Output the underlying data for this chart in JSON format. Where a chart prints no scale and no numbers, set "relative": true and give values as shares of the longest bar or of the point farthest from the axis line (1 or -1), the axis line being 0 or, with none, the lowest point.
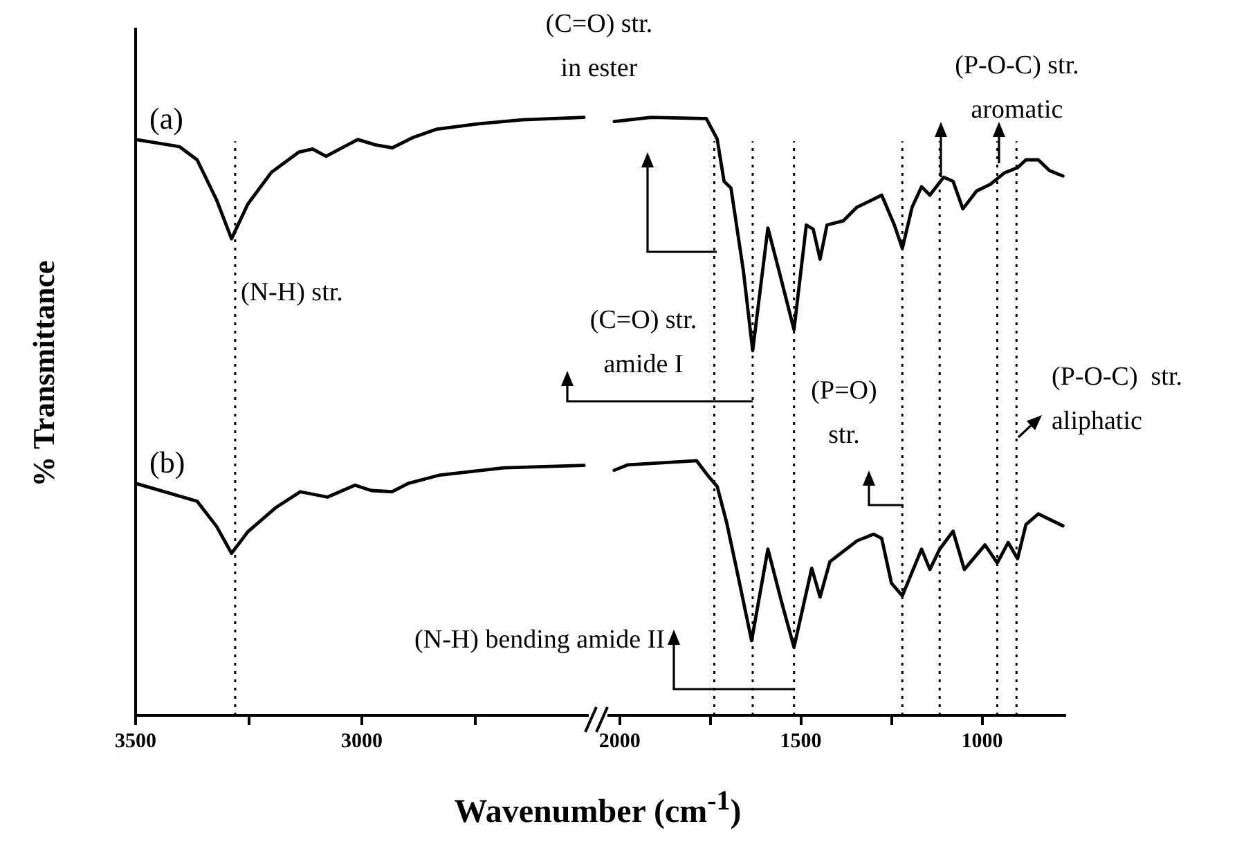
{
  "chart_data": [
    {
      "type": "line",
      "relative": true,
      "tick_labels": "x",
      "line_style": "solid",
      "xlabel": "Wavenumber (cm$^{-1}$)",
      "ylabel": "% Transmittance",
      "xlim": [
        3500,
        2500
      ],
      "xticks": [
        3500,
        {
          "value": 3250,
          "label": null
        },
        3000,
        {
          "value": 2750,
          "label": null
        }
      ],
      "x": [
        3500,
        3403,
        3364,
        3321,
        3288,
        3252,
        3200,
        3139,
        3109,
        3079,
        3009,
        2970,
        2933,
        2888,
        2836,
        2745,
        2645,
        2509
      ],
      "series": [
        {
          "name": "(a)",
          "color": "#000000",
          "values": [
            0.963,
            0.951,
            0.929,
            0.862,
            0.797,
            0.855,
            0.908,
            0.942,
            0.947,
            0.935,
            0.963,
            0.954,
            0.949,
            0.966,
            0.98,
            0.989,
            0.996,
            1.0
          ]
        },
        {
          "name": "(b)",
          "color": "#000000",
          "x": [
            3500,
            3364,
            3321,
            3288,
            3252,
            3191,
            3136,
            3076,
            3015,
            2979,
            2933,
            2897,
            2827,
            2685,
            2509
          ],
          "values": [
            0.388,
            0.358,
            0.316,
            0.271,
            0.307,
            0.347,
            0.374,
            0.365,
            0.385,
            0.376,
            0.374,
            0.388,
            0.402,
            0.414,
            0.418
          ]
        }
      ],
      "ref_lines": [
        {
          "axis": "x",
          "value": 3280,
          "line_style": "dotted"
        }
      ],
      "annotations": [
        "(N-H) str.",
        "(C=O) str.\nin ester",
        "(N-H) bending amide II"
      ]
    },
    {
      "type": "line",
      "relative": true,
      "tick_labels": "x",
      "line_style": "solid",
      "xlim": [
        2030,
        770
      ],
      "xticks": [
        2000,
        {
          "value": 1750,
          "label": null
        },
        1500,
        {
          "value": 1250,
          "label": null
        },
        1000
      ],
      "x": [
        2015,
        1913,
        1761,
        1731,
        1712,
        1693,
        1659,
        1633,
        1591,
        1561,
        1519,
        1485,
        1466,
        1447,
        1428,
        1383,
        1345,
        1307,
        1277,
        1242,
        1220,
        1193,
        1167,
        1144,
        1106,
        1080,
        1053,
        1015,
        977,
        939,
        902,
        879,
        845,
        814,
        777
      ],
      "series": [
        {
          "color": "#000000",
          "values": [
            0.993,
            1.0,
            0.998,
            0.964,
            0.893,
            0.882,
            0.745,
            0.61,
            0.815,
            0.745,
            0.645,
            0.82,
            0.813,
            0.763,
            0.82,
            0.827,
            0.85,
            0.861,
            0.87,
            0.82,
            0.781,
            0.85,
            0.884,
            0.87,
            0.9,
            0.893,
            0.847,
            0.877,
            0.888,
            0.907,
            0.916,
            0.929,
            0.929,
            0.911,
            0.902
          ]
        },
        {
          "color": "#000000",
          "x": [
            2015,
            1977,
            1788,
            1754,
            1731,
            1705,
            1674,
            1636,
            1591,
            1553,
            1519,
            1470,
            1447,
            1420,
            1345,
            1299,
            1277,
            1250,
            1220,
            1167,
            1144,
            1117,
            1080,
            1049,
            992,
            958,
            928,
            902,
            879,
            845,
            777
          ],
          "values": [
            0.41,
            0.419,
            0.426,
            0.399,
            0.383,
            0.323,
            0.235,
            0.125,
            0.278,
            0.189,
            0.114,
            0.246,
            0.198,
            0.257,
            0.292,
            0.303,
            0.296,
            0.221,
            0.2,
            0.278,
            0.244,
            0.278,
            0.308,
            0.244,
            0.285,
            0.255,
            0.289,
            0.262,
            0.319,
            0.337,
            0.317
          ]
        }
      ],
      "ref_lines": [
        {
          "axis": "x",
          "value": 1739,
          "line_style": "dotted"
        },
        {
          "axis": "x",
          "value": 1633,
          "line_style": "dotted"
        },
        {
          "axis": "x",
          "value": 1519,
          "line_style": "dotted"
        },
        {
          "axis": "x",
          "value": 1220,
          "line_style": "dotted"
        },
        {
          "axis": "x",
          "value": 1117,
          "line_style": "dotted"
        },
        {
          "axis": "x",
          "value": 958,
          "line_style": "dotted"
        },
        {
          "axis": "x",
          "value": 905,
          "line_style": "dotted"
        }
      ],
      "annotations": [
        "(C=O) str.\namide I",
        "(P=O)\nstr.",
        "(P-O-C) str.\naromatic",
        "(P-O-C)  str.\naliphatic"
      ]
    }
  ]
}
